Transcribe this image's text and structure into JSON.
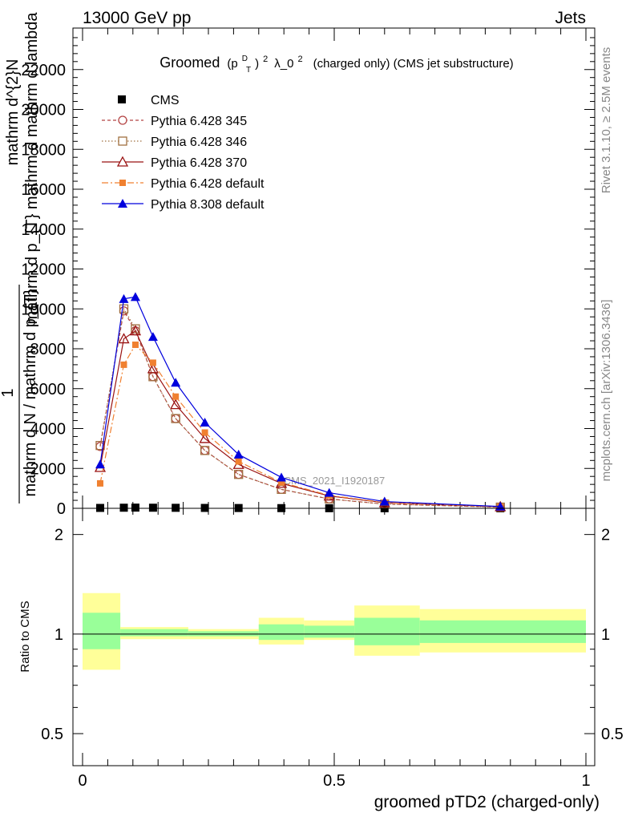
{
  "header": {
    "left": "13000 GeV pp",
    "right": "Jets"
  },
  "side": {
    "rivet": "Rivet 3.1.10, ≥ 2.5M events",
    "mcplots": "mcplots.cern.ch [arXiv:1306.3436]"
  },
  "chart_data": [
    {
      "type": "line",
      "title_main": "Groomed",
      "title_formula": "(p",
      "title_sup_d": "D",
      "title_sub_t": "T",
      "title_close": ")",
      "title_sup_2": "2",
      "title_lambda": "λ_0",
      "title_sup_2b": "2",
      "title_rest": "(charged only) (CMS jet substructure)",
      "ylabel_lines": [
        "mathrm d^{2}N",
        "mathrm d p_{T} mathrm d mathrm d lambda"
      ],
      "ylabel_frac_num": "1",
      "ylabel_frac_den": "mathrm d N / mathrm d p_{T}",
      "watermark": "CMS_2021_I1920187",
      "xlim": [
        0,
        1
      ],
      "ylim": [
        0,
        24000
      ],
      "y_ticks": [
        0,
        2000,
        4000,
        6000,
        8000,
        10000,
        12000,
        14000,
        16000,
        18000,
        20000,
        22000
      ],
      "y_tick_labels": [
        "0",
        "2000",
        "4000",
        "6000",
        "8000",
        "10000",
        "12000",
        "14000",
        "16000",
        "18000",
        "20000",
        "22000"
      ],
      "x_ticks_major": [
        0,
        0.5,
        1
      ],
      "bin_edges": [
        0,
        0.075,
        0.095,
        0.12,
        0.16,
        0.21,
        0.27,
        0.35,
        0.44,
        0.54,
        0.67,
        1.0
      ],
      "x": [
        0.035,
        0.082,
        0.105,
        0.14,
        0.185,
        0.243,
        0.31,
        0.395,
        0.49,
        0.6,
        0.83
      ],
      "legend": {
        "cms": "CMS",
        "p345": "Pythia 6.428 345",
        "p346": "Pythia 6.428 346",
        "p370": "Pythia 6.428 370",
        "p6def": "Pythia 6.428 default",
        "p8def": "Pythia 8.308 default"
      },
      "series": [
        {
          "name": "CMS",
          "key": "cms",
          "color": "#000000",
          "marker": "square",
          "dash": "",
          "values": [
            20,
            30,
            35,
            30,
            25,
            20,
            15,
            10,
            5,
            3,
            1
          ]
        },
        {
          "name": "Pythia 6.428 345",
          "key": "p345",
          "color": "#b44444",
          "marker": "circle-open",
          "dash": "4,3",
          "values": [
            3100,
            9900,
            8900,
            6600,
            4500,
            2900,
            1700,
            950,
            470,
            210,
            60
          ]
        },
        {
          "name": "Pythia 6.428 346",
          "key": "p346",
          "color": "#a07040",
          "marker": "square-open",
          "dash": "1.5,2.5",
          "values": [
            3150,
            10000,
            9000,
            6600,
            4500,
            2900,
            1700,
            950,
            470,
            210,
            60
          ]
        },
        {
          "name": "Pythia 6.428 370",
          "key": "p370",
          "color": "#991111",
          "marker": "triangle-open",
          "dash": "",
          "values": [
            2050,
            8500,
            8900,
            7000,
            5200,
            3500,
            2200,
            1250,
            620,
            280,
            80
          ]
        },
        {
          "name": "Pythia 6.428 default",
          "key": "p6def",
          "color": "#f08030",
          "marker": "square-filled",
          "dash": "8,3,2,3",
          "values": [
            1250,
            7200,
            8200,
            7300,
            5600,
            3800,
            2350,
            1300,
            650,
            290,
            80
          ]
        },
        {
          "name": "Pythia 8.308 default",
          "key": "p8def",
          "color": "#0000dd",
          "marker": "triangle-filled",
          "dash": "",
          "values": [
            2200,
            10500,
            10600,
            8600,
            6300,
            4300,
            2700,
            1550,
            780,
            340,
            90
          ]
        }
      ]
    },
    {
      "type": "area",
      "ylabel": "Ratio to CMS",
      "xlabel": "groomed pTD2 (charged-only)",
      "scale": "log",
      "ylim": [
        0.4,
        2.4
      ],
      "y_ticks": [
        0.5,
        1,
        2
      ],
      "y_tick_labels": [
        "0.5",
        "1",
        "2"
      ],
      "x_ticks_major": [
        0,
        0.5,
        1
      ],
      "x_tick_labels": [
        "0",
        "0.5",
        "1"
      ],
      "bin_edges": [
        0,
        0.075,
        0.095,
        0.12,
        0.16,
        0.21,
        0.27,
        0.35,
        0.44,
        0.54,
        0.67,
        1.0
      ],
      "band_edges": [
        0,
        0.075,
        0.21,
        0.35,
        0.44,
        0.54,
        0.67,
        1.0
      ],
      "inner_band": [
        [
          0.9,
          1.16
        ],
        [
          0.985,
          1.035
        ],
        [
          0.985,
          1.02
        ],
        [
          0.96,
          1.07
        ],
        [
          0.975,
          1.06
        ],
        [
          0.925,
          1.12
        ],
        [
          0.94,
          1.1
        ]
      ],
      "outer_band": [
        [
          0.78,
          1.33
        ],
        [
          0.965,
          1.05
        ],
        [
          0.965,
          1.035
        ],
        [
          0.93,
          1.12
        ],
        [
          0.96,
          1.1
        ],
        [
          0.86,
          1.22
        ],
        [
          0.88,
          1.19
        ]
      ],
      "reference": 1
    }
  ]
}
